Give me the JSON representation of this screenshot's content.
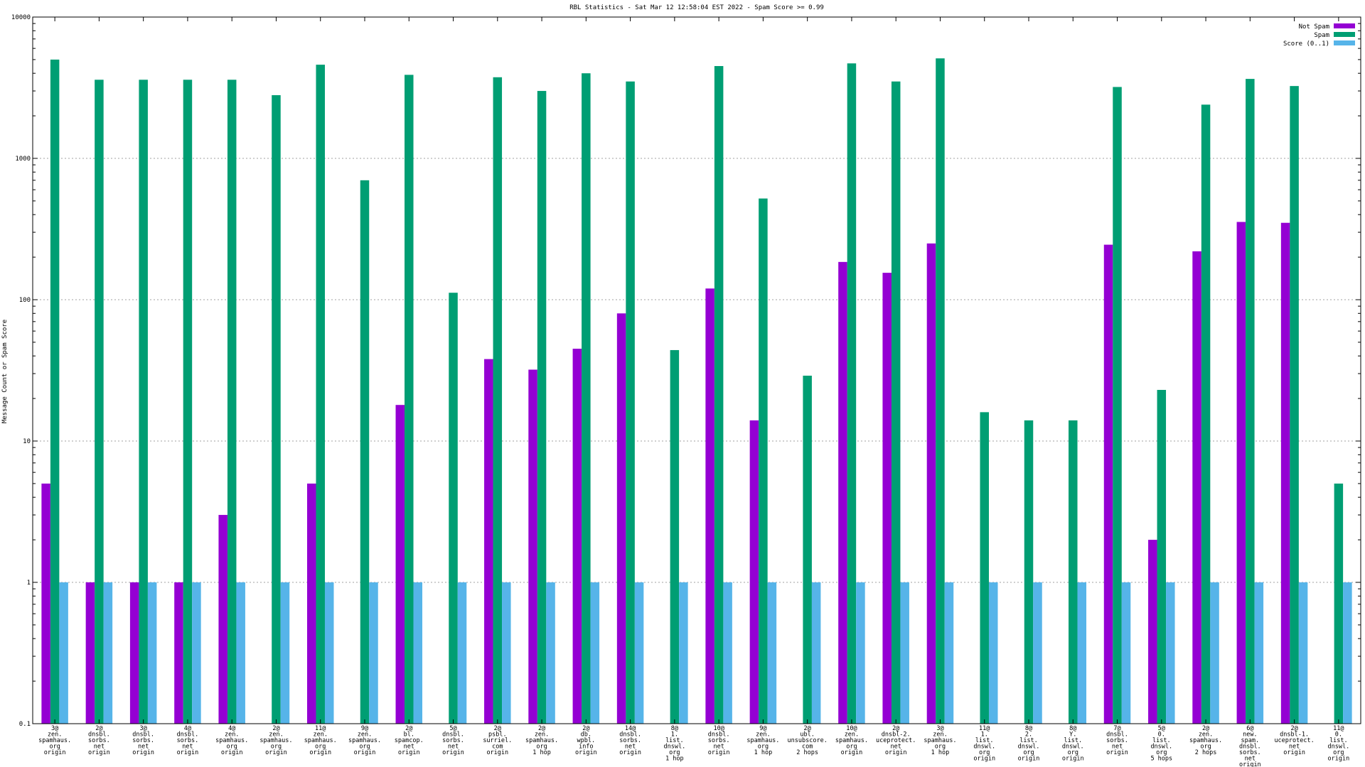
{
  "chart_data": {
    "type": "bar",
    "title": "RBL Statistics - Sat Mar 12 12:58:04 EST 2022 - Spam Score >= 0.99",
    "ylabel": "Message Count or Spam Score",
    "xlabel": "",
    "yscale": "log",
    "ylim": [
      0.1,
      10000
    ],
    "yticks": [
      "0.1",
      "1",
      "10",
      "100",
      "1000",
      "10000"
    ],
    "grid": true,
    "legend_position": "top-right",
    "categories": [
      [
        "3@",
        "zen.",
        "spamhaus.",
        "org",
        "origin"
      ],
      [
        "2@",
        "dnsbl.",
        "sorbs.",
        "net",
        "origin"
      ],
      [
        "3@",
        "dnsbl.",
        "sorbs.",
        "net",
        "origin"
      ],
      [
        "4@",
        "dnsbl.",
        "sorbs.",
        "net",
        "origin"
      ],
      [
        "4@",
        "zen.",
        "spamhaus.",
        "org",
        "origin"
      ],
      [
        "2@",
        "zen.",
        "spamhaus.",
        "org",
        "origin"
      ],
      [
        "11@",
        "zen.",
        "spamhaus.",
        "org",
        "origin"
      ],
      [
        "9@",
        "zen.",
        "spamhaus.",
        "org",
        "origin"
      ],
      [
        "2@",
        "bl.",
        "spamcop.",
        "net",
        "origin"
      ],
      [
        "5@",
        "dnsbl.",
        "sorbs.",
        "net",
        "origin"
      ],
      [
        "2@",
        "psbl.",
        "surriel.",
        "com",
        "origin"
      ],
      [
        "2@",
        "zen.",
        "spamhaus.",
        "org",
        "1 hop"
      ],
      [
        "2@",
        "db.",
        "wpbl.",
        "info",
        "origin"
      ],
      [
        "14@",
        "dnsbl.",
        "sorbs.",
        "net",
        "origin"
      ],
      [
        "8@",
        "1.",
        "list.",
        "dnswl.",
        "org",
        "1 hop"
      ],
      [
        "10@",
        "dnsbl.",
        "sorbs.",
        "net",
        "origin"
      ],
      [
        "9@",
        "zen.",
        "spamhaus.",
        "org",
        "1 hop"
      ],
      [
        "2@",
        "ubl.",
        "unsubscore.",
        "com",
        "2 hops"
      ],
      [
        "10@",
        "zen.",
        "spamhaus.",
        "org",
        "origin"
      ],
      [
        "2@",
        "dnsbl-2.",
        "uceprotect.",
        "net",
        "origin"
      ],
      [
        "3@",
        "zen.",
        "spamhaus.",
        "org",
        "1 hop"
      ],
      [
        "11@",
        "1.",
        "list.",
        "dnswl.",
        "org",
        "origin"
      ],
      [
        "8@",
        "2.",
        "list.",
        "dnswl.",
        "org",
        "origin"
      ],
      [
        "8@",
        "Y.",
        "list.",
        "dnswl.",
        "org",
        "origin"
      ],
      [
        "7@",
        "dnsbl.",
        "sorbs.",
        "net",
        "origin"
      ],
      [
        "5@",
        "0.",
        "list.",
        "dnswl.",
        "org",
        "5 hops"
      ],
      [
        "2@",
        "zen.",
        "spamhaus.",
        "org",
        "2 hops"
      ],
      [
        "6@",
        "new.",
        "spam.",
        "dnsbl.",
        "sorbs.",
        "net",
        "origin"
      ],
      [
        "2@",
        "dnsbl-1.",
        "uceprotect.",
        "net",
        "origin"
      ],
      [
        "11@",
        "0.",
        "list.",
        "dnswl.",
        "org",
        "origin"
      ]
    ],
    "series": [
      {
        "name": "Not Spam",
        "color": "#9400d3",
        "values": [
          5,
          1,
          1,
          1,
          3,
          null,
          5,
          null,
          18,
          null,
          38,
          32,
          45,
          80,
          null,
          120,
          14,
          null,
          185,
          155,
          250,
          null,
          null,
          null,
          245,
          2,
          220,
          355,
          350,
          null
        ]
      },
      {
        "name": "Spam",
        "color": "#009e73",
        "values": [
          5000,
          3600,
          3600,
          3600,
          3600,
          2800,
          4600,
          700,
          3900,
          112,
          3750,
          3000,
          4000,
          3500,
          44,
          4500,
          520,
          29,
          4700,
          3500,
          5100,
          16,
          14,
          14,
          3200,
          23,
          2400,
          3650,
          3250,
          5
        ]
      },
      {
        "name": "Score (0..1)",
        "color": "#56b4e9",
        "values": [
          1,
          1,
          1,
          1,
          1,
          1,
          1,
          1,
          1,
          1,
          1,
          1,
          1,
          1,
          1,
          1,
          1,
          1,
          1,
          1,
          1,
          1,
          1,
          1,
          1,
          1,
          1,
          1,
          1,
          1
        ]
      }
    ]
  }
}
